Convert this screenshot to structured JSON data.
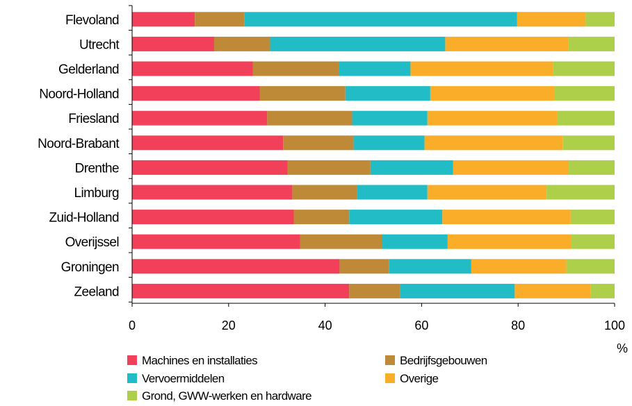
{
  "chart_data": {
    "type": "bar",
    "orientation": "horizontal",
    "stacked": true,
    "stack_mode": "percent",
    "categories": [
      "Flevoland",
      "Utrecht",
      "Gelderland",
      "Noord-Holland",
      "Friesland",
      "Noord-Brabant",
      "Drenthe",
      "Limburg",
      "Zuid-Holland",
      "Overijssel",
      "Groningen",
      "Zeeland"
    ],
    "series": [
      {
        "name": "Machines en installaties",
        "color": "#F2405A",
        "values": [
          13,
          17,
          25,
          26.5,
          28,
          31.3,
          32.2,
          33.2,
          33.5,
          34.8,
          43,
          45
        ]
      },
      {
        "name": "Bedrijfsgebouwen",
        "color": "#BE8A37",
        "values": [
          10.3,
          11.6,
          17.8,
          17.7,
          17.6,
          14.6,
          17.2,
          13.4,
          11.5,
          17,
          10.2,
          10.6
        ]
      },
      {
        "name": "Vervoermiddelen",
        "color": "#22BCC6",
        "values": [
          56.5,
          36.3,
          14.9,
          17.6,
          15.6,
          14.7,
          17.1,
          14.6,
          19.3,
          13.6,
          17.1,
          23.7
        ]
      },
      {
        "name": "Overige",
        "color": "#F9AD28",
        "values": [
          14.2,
          25.5,
          29.6,
          25.8,
          26.9,
          28.7,
          24,
          24.7,
          26.6,
          25.6,
          19.7,
          15.7
        ]
      },
      {
        "name": "Grond, GWW-werken en hardware",
        "color": "#ADCF4A",
        "values": [
          6,
          9.6,
          12.7,
          12.4,
          11.9,
          10.7,
          9.5,
          14.1,
          9.1,
          9,
          10,
          5
        ]
      }
    ],
    "xlim": [
      0,
      100
    ],
    "xticks": [
      0,
      20,
      40,
      60,
      80,
      100
    ],
    "x_unit": "%",
    "grid": false,
    "legend_position": "bottom",
    "legend_columns": 2
  }
}
